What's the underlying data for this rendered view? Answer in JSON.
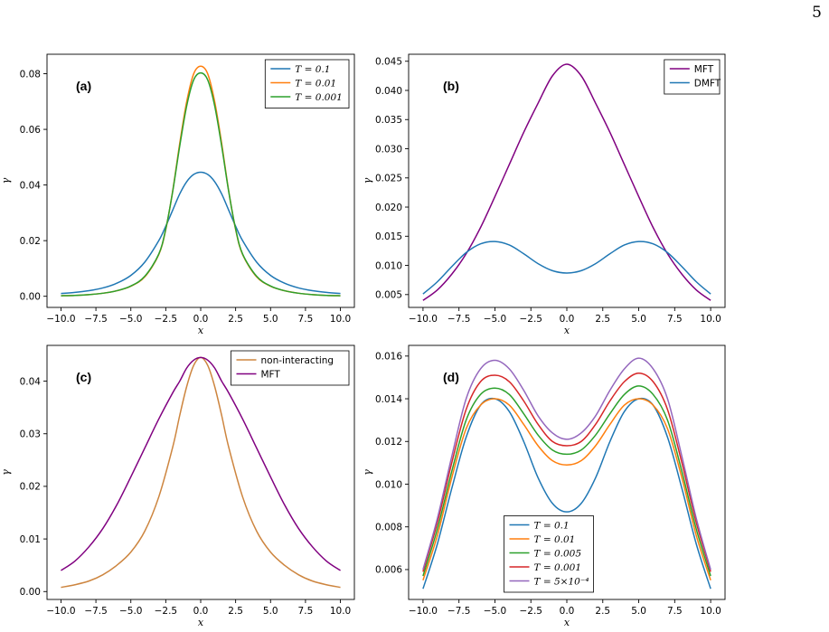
{
  "page": {
    "number": "5"
  },
  "chart_data": [
    {
      "id": "a",
      "type": "line",
      "panel_label": "(a)",
      "xlabel": "x",
      "ylabel": "γ",
      "xlim": [
        -11,
        11
      ],
      "ylim": [
        -0.004,
        0.087
      ],
      "xticks": [
        -10,
        -7.5,
        -5,
        -2.5,
        0,
        2.5,
        5,
        7.5,
        10
      ],
      "xtick_labels": [
        "−10.0",
        "−7.5",
        "−5.0",
        "−2.5",
        "0.0",
        "2.5",
        "5.0",
        "7.5",
        "10.0"
      ],
      "yticks": [
        0,
        0.02,
        0.04,
        0.06,
        0.08
      ],
      "ytick_labels": [
        "0.00",
        "0.02",
        "0.04",
        "0.06",
        "0.08"
      ],
      "grid": false,
      "legend": {
        "position": "top-right",
        "math": true
      },
      "x": [
        -10,
        -9,
        -8,
        -7,
        -6,
        -5,
        -4,
        -3,
        -2.5,
        -2,
        -1.5,
        -1,
        -0.5,
        0,
        0.5,
        1,
        1.5,
        2,
        2.5,
        3,
        4,
        5,
        6,
        7,
        8,
        9,
        10
      ],
      "series": [
        {
          "name": "T = 0.1",
          "color": "#1f77b4",
          "values": [
            0.001,
            0.0014,
            0.002,
            0.003,
            0.0047,
            0.0075,
            0.0123,
            0.02,
            0.0252,
            0.031,
            0.0368,
            0.0412,
            0.0438,
            0.0446,
            0.0438,
            0.0412,
            0.0368,
            0.031,
            0.0252,
            0.02,
            0.0123,
            0.0075,
            0.0047,
            0.003,
            0.002,
            0.0014,
            0.001
          ]
        },
        {
          "name": "T = 0.01",
          "color": "#ff7f0e",
          "values": [
            0.0002,
            0.0003,
            0.0006,
            0.0011,
            0.002,
            0.0036,
            0.007,
            0.015,
            0.024,
            0.038,
            0.055,
            0.07,
            0.08,
            0.0827,
            0.08,
            0.07,
            0.055,
            0.038,
            0.024,
            0.015,
            0.007,
            0.0036,
            0.002,
            0.0011,
            0.0006,
            0.0003,
            0.0002
          ]
        },
        {
          "name": "T = 0.001",
          "color": "#2ca02c",
          "values": [
            0.0002,
            0.0003,
            0.0006,
            0.0011,
            0.002,
            0.0037,
            0.0072,
            0.0152,
            0.0242,
            0.0378,
            0.054,
            0.0685,
            0.0778,
            0.0803,
            0.0778,
            0.0685,
            0.054,
            0.0378,
            0.0242,
            0.0152,
            0.0072,
            0.0037,
            0.002,
            0.0011,
            0.0006,
            0.0003,
            0.0002
          ]
        }
      ]
    },
    {
      "id": "b",
      "type": "line",
      "panel_label": "(b)",
      "xlabel": "x",
      "ylabel": "γ",
      "xlim": [
        -11,
        11
      ],
      "ylim": [
        0.0028,
        0.0462
      ],
      "xticks": [
        -10,
        -7.5,
        -5,
        -2.5,
        0,
        2.5,
        5,
        7.5,
        10
      ],
      "xtick_labels": [
        "−10.0",
        "−7.5",
        "−5.0",
        "−2.5",
        "0.0",
        "2.5",
        "5.0",
        "7.5",
        "10.0"
      ],
      "yticks": [
        0.005,
        0.01,
        0.015,
        0.02,
        0.025,
        0.03,
        0.035,
        0.04,
        0.045
      ],
      "ytick_labels": [
        "0.005",
        "0.010",
        "0.015",
        "0.020",
        "0.025",
        "0.030",
        "0.035",
        "0.040",
        "0.045"
      ],
      "grid": false,
      "legend": {
        "position": "top-right",
        "math": false
      },
      "x": [
        -10,
        -9,
        -8,
        -7,
        -6,
        -5,
        -4,
        -3,
        -2,
        -1,
        0,
        1,
        2,
        3,
        4,
        5,
        6,
        7,
        8,
        9,
        10
      ],
      "series": [
        {
          "name": "MFT",
          "color": "#800080",
          "values": [
            0.004,
            0.0058,
            0.0085,
            0.012,
            0.0165,
            0.0218,
            0.0273,
            0.0328,
            0.0378,
            0.0425,
            0.0445,
            0.0425,
            0.0378,
            0.0328,
            0.0273,
            0.0218,
            0.0165,
            0.012,
            0.0085,
            0.0058,
            0.004
          ]
        },
        {
          "name": "DMFT",
          "color": "#1f77b4",
          "values": [
            0.0051,
            0.0072,
            0.0098,
            0.0122,
            0.0137,
            0.0141,
            0.0135,
            0.012,
            0.0103,
            0.0091,
            0.0087,
            0.0091,
            0.0103,
            0.012,
            0.0135,
            0.0141,
            0.0137,
            0.0122,
            0.0098,
            0.0072,
            0.0051
          ]
        }
      ]
    },
    {
      "id": "c",
      "type": "line",
      "panel_label": "(c)",
      "xlabel": "x",
      "ylabel": "γ",
      "xlim": [
        -11,
        11
      ],
      "ylim": [
        -0.0015,
        0.0468
      ],
      "xticks": [
        -10,
        -7.5,
        -5,
        -2.5,
        0,
        2.5,
        5,
        7.5,
        10
      ],
      "xtick_labels": [
        "−10.0",
        "−7.5",
        "−5.0",
        "−2.5",
        "0.0",
        "2.5",
        "5.0",
        "7.5",
        "10.0"
      ],
      "yticks": [
        0,
        0.01,
        0.02,
        0.03,
        0.04
      ],
      "ytick_labels": [
        "0.00",
        "0.01",
        "0.02",
        "0.03",
        "0.04"
      ],
      "grid": false,
      "legend": {
        "position": "top-right",
        "math": false
      },
      "x": [
        -10,
        -9,
        -8,
        -7,
        -6,
        -5,
        -4,
        -3,
        -2,
        -1.5,
        -1,
        -0.5,
        0,
        0.5,
        1,
        1.5,
        2,
        3,
        4,
        5,
        6,
        7,
        8,
        9,
        10
      ],
      "series": [
        {
          "name": "non-interacting",
          "color": "#cd853f",
          "values": [
            0.0008,
            0.0013,
            0.002,
            0.0032,
            0.005,
            0.0075,
            0.0115,
            0.018,
            0.0275,
            0.0335,
            0.039,
            0.043,
            0.0445,
            0.043,
            0.039,
            0.0335,
            0.0275,
            0.018,
            0.0115,
            0.0075,
            0.005,
            0.0032,
            0.002,
            0.0013,
            0.0008
          ]
        },
        {
          "name": "MFT",
          "color": "#800080",
          "values": [
            0.004,
            0.0058,
            0.0085,
            0.012,
            0.0165,
            0.0218,
            0.0273,
            0.0328,
            0.0378,
            0.04,
            0.0425,
            0.044,
            0.0445,
            0.044,
            0.0425,
            0.04,
            0.0378,
            0.0328,
            0.0273,
            0.0218,
            0.0165,
            0.012,
            0.0085,
            0.0058,
            0.004
          ]
        }
      ]
    },
    {
      "id": "d",
      "type": "line",
      "panel_label": "(d)",
      "xlabel": "x",
      "ylabel": "γ",
      "xlim": [
        -11,
        11
      ],
      "ylim": [
        0.0046,
        0.0165
      ],
      "xticks": [
        -10,
        -7.5,
        -5,
        -2.5,
        0,
        2.5,
        5,
        7.5,
        10
      ],
      "xtick_labels": [
        "−10.0",
        "−7.5",
        "−5.0",
        "−2.5",
        "0.0",
        "2.5",
        "5.0",
        "7.5",
        "10.0"
      ],
      "yticks": [
        0.006,
        0.008,
        0.01,
        0.012,
        0.014,
        0.016
      ],
      "ytick_labels": [
        "0.006",
        "0.008",
        "0.010",
        "0.012",
        "0.014",
        "0.016"
      ],
      "grid": false,
      "legend": {
        "position": "lower-center",
        "math": true
      },
      "x": [
        -10,
        -9,
        -8,
        -7,
        -6,
        -5,
        -4,
        -3,
        -2,
        -1,
        0,
        1,
        2,
        3,
        4,
        5,
        6,
        7,
        8,
        9,
        10
      ],
      "series": [
        {
          "name": "T = 0.1",
          "color": "#1f77b4",
          "values": [
            0.0051,
            0.0072,
            0.0098,
            0.0122,
            0.0137,
            0.014,
            0.0134,
            0.012,
            0.0103,
            0.0091,
            0.0087,
            0.0091,
            0.0103,
            0.012,
            0.0134,
            0.014,
            0.0137,
            0.0122,
            0.0098,
            0.0072,
            0.0051
          ]
        },
        {
          "name": "T = 0.01",
          "color": "#ff7f0e",
          "values": [
            0.0055,
            0.0076,
            0.0103,
            0.0126,
            0.0137,
            0.014,
            0.0137,
            0.0128,
            0.0118,
            0.0111,
            0.0109,
            0.0111,
            0.0118,
            0.0128,
            0.0137,
            0.014,
            0.0137,
            0.0126,
            0.0103,
            0.0076,
            0.0055
          ]
        },
        {
          "name": "T = 0.005",
          "color": "#2ca02c",
          "values": [
            0.0057,
            0.0079,
            0.0106,
            0.013,
            0.0142,
            0.0145,
            0.0142,
            0.0133,
            0.0123,
            0.0116,
            0.0114,
            0.0116,
            0.0123,
            0.0133,
            0.0142,
            0.0146,
            0.0142,
            0.013,
            0.0106,
            0.0079,
            0.0057
          ]
        },
        {
          "name": "T = 0.001",
          "color": "#d62728",
          "values": [
            0.0059,
            0.0082,
            0.011,
            0.0135,
            0.0148,
            0.0151,
            0.0148,
            0.0139,
            0.0128,
            0.012,
            0.0118,
            0.012,
            0.0128,
            0.0139,
            0.0148,
            0.0152,
            0.0148,
            0.0135,
            0.011,
            0.0082,
            0.0059
          ]
        },
        {
          "name": "T = 5×10⁻⁴",
          "color": "#9467bd",
          "values": [
            0.006,
            0.0084,
            0.0113,
            0.014,
            0.0154,
            0.0158,
            0.0154,
            0.0144,
            0.0132,
            0.0124,
            0.0121,
            0.0124,
            0.0132,
            0.0144,
            0.0154,
            0.0159,
            0.0154,
            0.014,
            0.0113,
            0.0084,
            0.006
          ]
        }
      ]
    }
  ]
}
